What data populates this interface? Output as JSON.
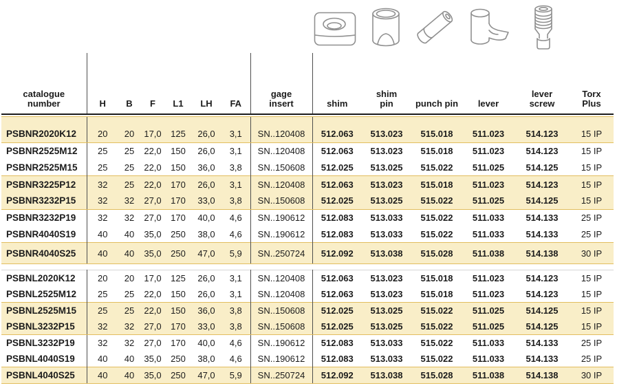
{
  "table": {
    "columns": {
      "catalogue": "catalogue\nnumber",
      "h": "H",
      "b": "B",
      "f": "F",
      "l1": "L1",
      "lh": "LH",
      "fa": "FA",
      "gage": "gage\ninsert",
      "shim": "shim",
      "shim_pin": "shim\npin",
      "punch_pin": "punch pin",
      "lever": "lever",
      "lever_screw": "lever\nscrew",
      "torx": "Torx\nPlus"
    },
    "icons": [
      "shim-icon",
      "shim-pin-icon",
      "punch-pin-icon",
      "lever-icon",
      "lever-screw-icon"
    ],
    "blocks": [
      {
        "rows": [
          {
            "catalogue": "PSBNR2020K12",
            "h": "20",
            "b": "20",
            "f": "17,0",
            "l1": "125",
            "lh": "26,0",
            "fa": "3,1",
            "gage": "SN..120408",
            "shim": "512.063",
            "shim_pin": "513.023",
            "punch_pin": "515.018",
            "lever": "511.023",
            "lever_screw": "514.123",
            "torx": "15 IP",
            "highlight": true
          },
          {
            "catalogue": "PSBNR2525M12",
            "h": "25",
            "b": "25",
            "f": "22,0",
            "l1": "150",
            "lh": "26,0",
            "fa": "3,1",
            "gage": "SN..120408",
            "shim": "512.063",
            "shim_pin": "513.023",
            "punch_pin": "515.018",
            "lever": "511.023",
            "lever_screw": "514.123",
            "torx": "15 IP",
            "highlight": false
          },
          {
            "catalogue": "PSBNR2525M15",
            "h": "25",
            "b": "25",
            "f": "22,0",
            "l1": "150",
            "lh": "36,0",
            "fa": "3,8",
            "gage": "SN..150608",
            "shim": "512.025",
            "shim_pin": "513.025",
            "punch_pin": "515.022",
            "lever": "511.025",
            "lever_screw": "514.125",
            "torx": "15 IP",
            "highlight": false
          },
          {
            "catalogue": "PSBNR3225P12",
            "h": "32",
            "b": "25",
            "f": "22,0",
            "l1": "170",
            "lh": "26,0",
            "fa": "3,1",
            "gage": "SN..120408",
            "shim": "512.063",
            "shim_pin": "513.023",
            "punch_pin": "515.018",
            "lever": "511.023",
            "lever_screw": "514.123",
            "torx": "15 IP",
            "highlight": true
          },
          {
            "catalogue": "PSBNR3232P15",
            "h": "32",
            "b": "32",
            "f": "27,0",
            "l1": "170",
            "lh": "33,0",
            "fa": "3,8",
            "gage": "SN..150608",
            "shim": "512.025",
            "shim_pin": "513.025",
            "punch_pin": "515.022",
            "lever": "511.025",
            "lever_screw": "514.125",
            "torx": "15 IP",
            "highlight": true
          },
          {
            "catalogue": "PSBNR3232P19",
            "h": "32",
            "b": "32",
            "f": "27,0",
            "l1": "170",
            "lh": "40,0",
            "fa": "4,6",
            "gage": "SN..190612",
            "shim": "512.083",
            "shim_pin": "513.033",
            "punch_pin": "515.022",
            "lever": "511.033",
            "lever_screw": "514.133",
            "torx": "25 IP",
            "highlight": false
          },
          {
            "catalogue": "PSBNR4040S19",
            "h": "40",
            "b": "40",
            "f": "35,0",
            "l1": "250",
            "lh": "38,0",
            "fa": "4,6",
            "gage": "SN..190612",
            "shim": "512.083",
            "shim_pin": "513.033",
            "punch_pin": "515.022",
            "lever": "511.033",
            "lever_screw": "514.133",
            "torx": "25 IP",
            "highlight": false
          },
          {
            "catalogue": "PSBNR4040S25",
            "h": "40",
            "b": "40",
            "f": "35,0",
            "l1": "250",
            "lh": "47,0",
            "fa": "5,9",
            "gage": "SN..250724",
            "shim": "512.092",
            "shim_pin": "513.038",
            "punch_pin": "515.028",
            "lever": "511.038",
            "lever_screw": "514.138",
            "torx": "30 IP",
            "highlight": true
          }
        ]
      },
      {
        "rows": [
          {
            "catalogue": "PSBNL2020K12",
            "h": "20",
            "b": "20",
            "f": "17,0",
            "l1": "125",
            "lh": "26,0",
            "fa": "3,1",
            "gage": "SN..120408",
            "shim": "512.063",
            "shim_pin": "513.023",
            "punch_pin": "515.018",
            "lever": "511.023",
            "lever_screw": "514.123",
            "torx": "15 IP",
            "highlight": false
          },
          {
            "catalogue": "PSBNL2525M12",
            "h": "25",
            "b": "25",
            "f": "22,0",
            "l1": "150",
            "lh": "26,0",
            "fa": "3,1",
            "gage": "SN..120408",
            "shim": "512.063",
            "shim_pin": "513.023",
            "punch_pin": "515.018",
            "lever": "511.023",
            "lever_screw": "514.123",
            "torx": "15 IP",
            "highlight": false
          },
          {
            "catalogue": "PSBNL2525M15",
            "h": "25",
            "b": "25",
            "f": "22,0",
            "l1": "150",
            "lh": "36,0",
            "fa": "3,8",
            "gage": "SN..150608",
            "shim": "512.025",
            "shim_pin": "513.025",
            "punch_pin": "515.022",
            "lever": "511.025",
            "lever_screw": "514.125",
            "torx": "15 IP",
            "highlight": true
          },
          {
            "catalogue": "PSBNL3232P15",
            "h": "32",
            "b": "32",
            "f": "27,0",
            "l1": "170",
            "lh": "33,0",
            "fa": "3,8",
            "gage": "SN..150608",
            "shim": "512.025",
            "shim_pin": "513.025",
            "punch_pin": "515.022",
            "lever": "511.025",
            "lever_screw": "514.125",
            "torx": "15 IP",
            "highlight": true
          },
          {
            "catalogue": "PSBNL3232P19",
            "h": "32",
            "b": "32",
            "f": "27,0",
            "l1": "170",
            "lh": "40,0",
            "fa": "4,6",
            "gage": "SN..190612",
            "shim": "512.083",
            "shim_pin": "513.033",
            "punch_pin": "515.022",
            "lever": "511.033",
            "lever_screw": "514.133",
            "torx": "25 IP",
            "highlight": false
          },
          {
            "catalogue": "PSBNL4040S19",
            "h": "40",
            "b": "40",
            "f": "35,0",
            "l1": "250",
            "lh": "38,0",
            "fa": "4,6",
            "gage": "SN..190612",
            "shim": "512.083",
            "shim_pin": "513.033",
            "punch_pin": "515.022",
            "lever": "511.033",
            "lever_screw": "514.133",
            "torx": "25 IP",
            "highlight": false
          },
          {
            "catalogue": "PSBNL4040S25",
            "h": "40",
            "b": "40",
            "f": "35,0",
            "l1": "250",
            "lh": "47,0",
            "fa": "5,9",
            "gage": "SN..250724",
            "shim": "512.092",
            "shim_pin": "513.038",
            "punch_pin": "515.028",
            "lever": "511.038",
            "lever_screw": "514.138",
            "torx": "30 IP",
            "highlight": true
          }
        ]
      }
    ]
  },
  "colors": {
    "highlight": "#f9eec8",
    "highlight_border": "#e2bd5e",
    "divider": "#4d4d4d",
    "header_rule": "#1b1b1b",
    "icon_stroke": "#8f8f8f"
  }
}
